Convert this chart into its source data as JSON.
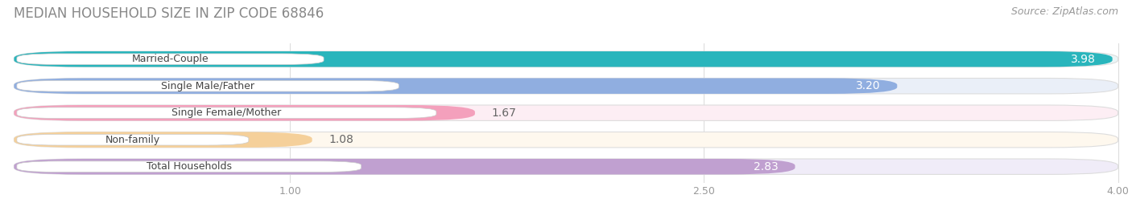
{
  "title": "MEDIAN HOUSEHOLD SIZE IN ZIP CODE 68846",
  "source": "Source: ZipAtlas.com",
  "categories": [
    "Married-Couple",
    "Single Male/Father",
    "Single Female/Mother",
    "Non-family",
    "Total Households"
  ],
  "values": [
    3.98,
    3.2,
    1.67,
    1.08,
    2.83
  ],
  "bar_colors": [
    "#29b5bc",
    "#90aee0",
    "#f4a0bc",
    "#f5d09a",
    "#c0a0d0"
  ],
  "bar_bg_colors": [
    "#eaf6f7",
    "#eaeff8",
    "#fdeef4",
    "#fef8ee",
    "#f0ecf8"
  ],
  "value_label_colors": [
    "#ffffff",
    "#ffffff",
    "#555555",
    "#555555",
    "#555555"
  ],
  "xmin": 0.0,
  "xmax": 4.0,
  "xticks": [
    1.0,
    2.5,
    4.0
  ],
  "title_fontsize": 12,
  "source_fontsize": 9,
  "bar_label_fontsize": 10,
  "category_label_fontsize": 9,
  "tick_fontsize": 9,
  "background_color": "#ffffff",
  "bar_area_bg": "#f7f7f7"
}
